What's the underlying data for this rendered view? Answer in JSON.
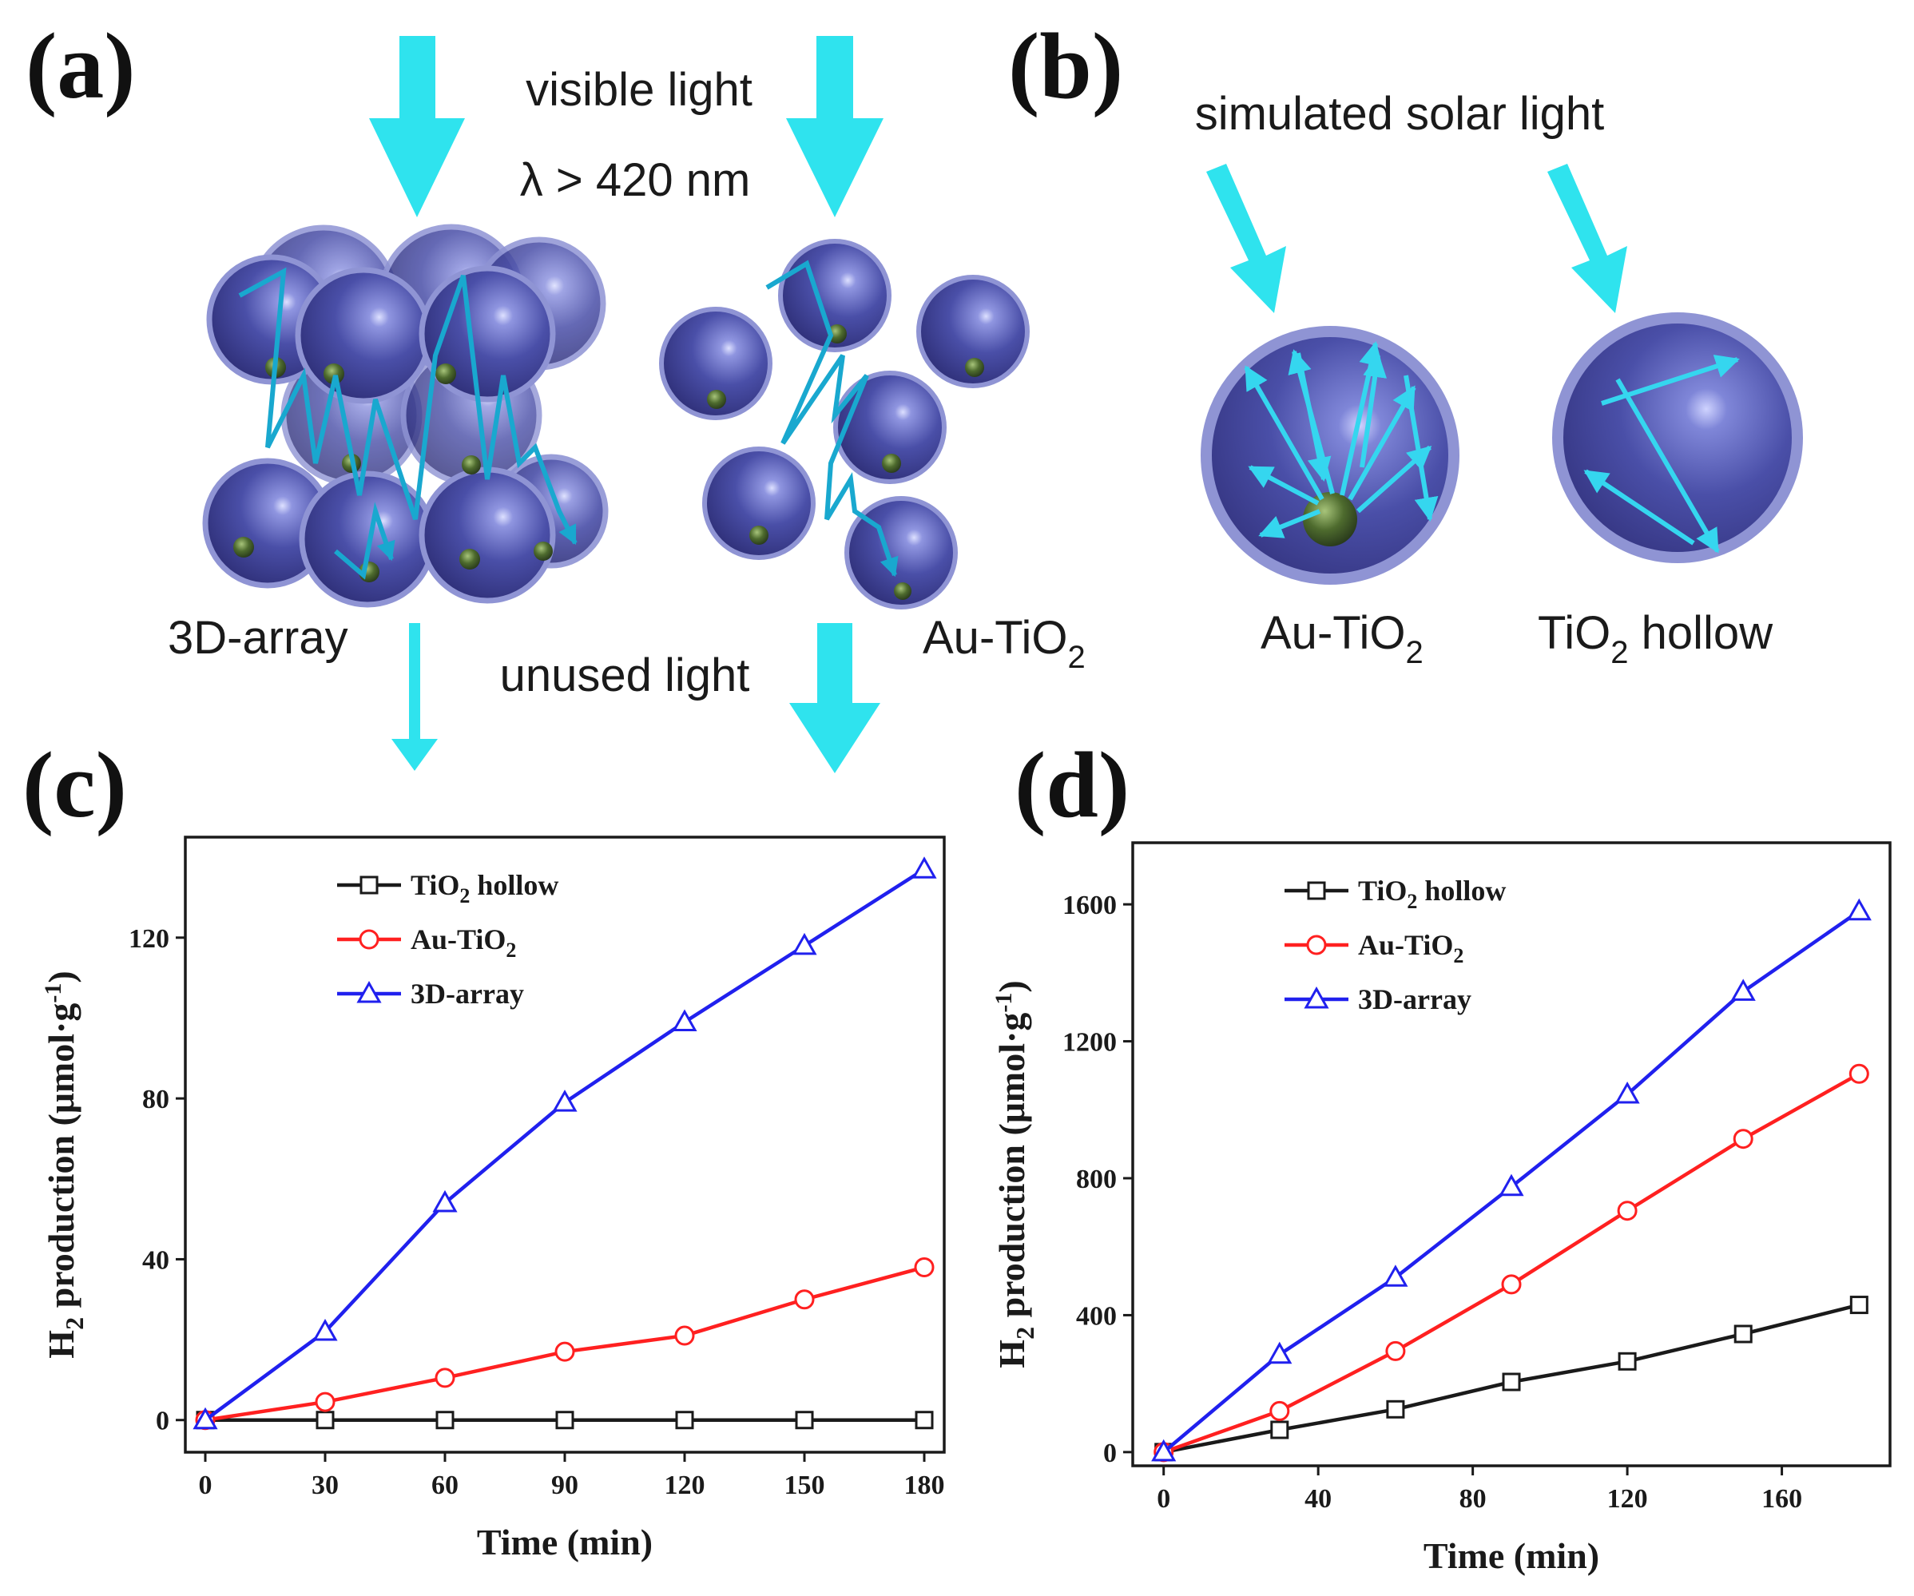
{
  "figure": {
    "colors": {
      "arrow": "#2fe3ee",
      "sphere": "#4a4fa8",
      "sphere_dark": "#2f2f7a",
      "sphere_rim": "#8f94d4",
      "path": "#19a8cf",
      "gold_core": "#3c5a26",
      "ray": "#35d6ef"
    },
    "panel_a": {
      "label": "(a)",
      "light_line1": "visible light",
      "light_line2": "λ > 420 nm",
      "left_caption": "3D-array",
      "right_caption_base": "Au-TiO",
      "right_caption_sub": "2",
      "bottom_caption": "unused light"
    },
    "panel_b": {
      "label": "(b)",
      "light": "simulated solar light",
      "left_caption_base": "Au-TiO",
      "left_caption_sub": "2",
      "right_caption_base": "TiO",
      "right_caption_sub": "2",
      "right_caption_tail": " hollow"
    }
  },
  "chart_data": [
    {
      "id": "c",
      "label": "(c)",
      "type": "line",
      "xlabel": "Time (min)",
      "ylabel_base": "H",
      "ylabel_sub": "2",
      "ylabel_tail": " production (μmol·g",
      "ylabel_sup": "-1",
      "ylabel_close": ")",
      "x": [
        0,
        30,
        60,
        90,
        120,
        150,
        180
      ],
      "xlim": [
        -5,
        185
      ],
      "ylim": [
        -8,
        145
      ],
      "xticks": [
        0,
        30,
        60,
        90,
        120,
        150,
        180
      ],
      "yticks": [
        0,
        40,
        80,
        120
      ],
      "legend_position": "top-left",
      "series": [
        {
          "name_base": "TiO",
          "name_sub": "2",
          "name_tail": " hollow",
          "color": "#1a1a1a",
          "marker": "square",
          "values": [
            0,
            0,
            0,
            0,
            0,
            0,
            0
          ]
        },
        {
          "name_base": "Au-TiO",
          "name_sub": "2",
          "name_tail": "",
          "color": "#ff2020",
          "marker": "circle",
          "values": [
            0,
            4.5,
            10.5,
            17,
            21,
            30,
            38
          ]
        },
        {
          "name_base": "3D-array",
          "name_sub": "",
          "name_tail": "",
          "color": "#2020ee",
          "marker": "triangle",
          "values": [
            0,
            22,
            54,
            79,
            99,
            118,
            137
          ]
        }
      ]
    },
    {
      "id": "d",
      "label": "(d)",
      "type": "line",
      "xlabel": "Time (min)",
      "ylabel_base": "H",
      "ylabel_sub": "2",
      "ylabel_tail": " production (μmol·g",
      "ylabel_sup": "-1",
      "ylabel_close": ")",
      "x": [
        0,
        30,
        60,
        90,
        120,
        150,
        180
      ],
      "xlim": [
        -8,
        188
      ],
      "ylim": [
        -40,
        1780
      ],
      "xticks": [
        0,
        40,
        80,
        120,
        160
      ],
      "yticks": [
        0,
        400,
        800,
        1200,
        1600
      ],
      "legend_position": "top-left",
      "series": [
        {
          "name_base": "TiO",
          "name_sub": "2",
          "name_tail": " hollow",
          "color": "#1a1a1a",
          "marker": "square",
          "values": [
            0,
            65,
            125,
            205,
            265,
            345,
            430
          ]
        },
        {
          "name_base": "Au-TiO",
          "name_sub": "2",
          "name_tail": "",
          "color": "#ff2020",
          "marker": "circle",
          "values": [
            0,
            120,
            295,
            490,
            705,
            915,
            1105
          ]
        },
        {
          "name_base": "3D-array",
          "name_sub": "",
          "name_tail": "",
          "color": "#2020ee",
          "marker": "triangle",
          "values": [
            0,
            285,
            510,
            775,
            1045,
            1345,
            1580
          ]
        }
      ]
    }
  ]
}
